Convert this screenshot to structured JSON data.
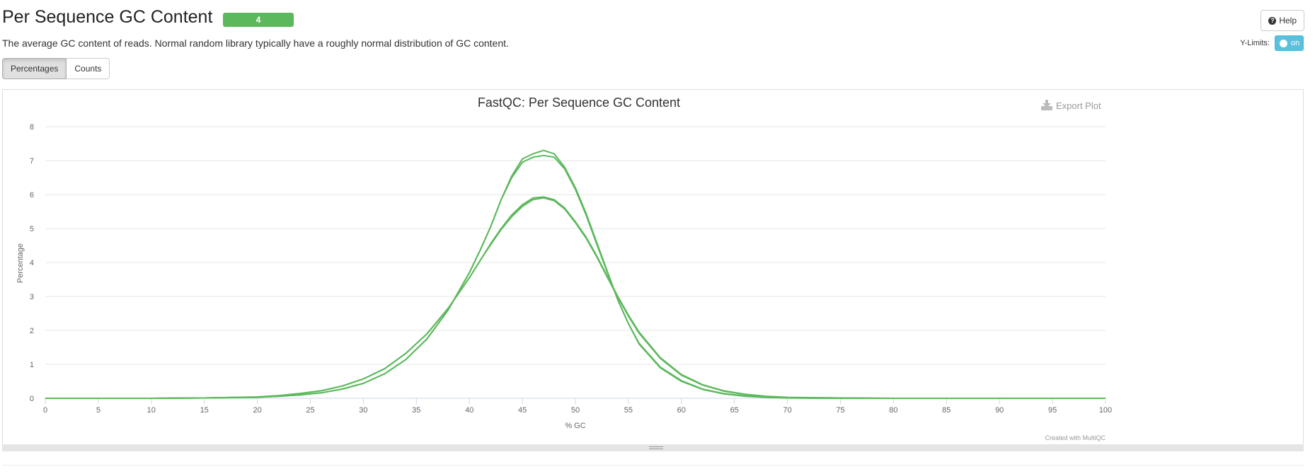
{
  "section": {
    "title": "Per Sequence GC Content",
    "badge": "4",
    "description": "The average GC content of reads. Normal random library typically have a roughly normal distribution of GC content.",
    "help_label": "Help",
    "ylimits_label": "Y-Limits:",
    "toggle_label": "on",
    "tabs": [
      {
        "label": "Percentages",
        "active": true
      },
      {
        "label": "Counts",
        "active": false
      }
    ],
    "export_label": "Export Plot",
    "credit": "Created with MultiQC"
  },
  "colors": {
    "series": "#5cb85c",
    "badge": "#5cb85c",
    "toggle": "#5bc0de"
  },
  "chart_data": {
    "type": "line",
    "title": "FastQC: Per Sequence GC Content",
    "xlabel": "% GC",
    "ylabel": "Percentage",
    "xlim": [
      0,
      100
    ],
    "ylim": [
      0,
      8
    ],
    "xticks": [
      0,
      5,
      10,
      15,
      20,
      25,
      30,
      35,
      40,
      45,
      50,
      55,
      60,
      65,
      70,
      75,
      80,
      85,
      90,
      95,
      100
    ],
    "yticks": [
      0,
      1,
      2,
      3,
      4,
      5,
      6,
      7,
      8
    ],
    "grid": true,
    "legend": false,
    "x": [
      0,
      5,
      10,
      15,
      20,
      22,
      24,
      26,
      28,
      30,
      32,
      34,
      36,
      38,
      40,
      41,
      42,
      43,
      44,
      45,
      46,
      47,
      48,
      49,
      50,
      51,
      52,
      53,
      54,
      55,
      56,
      58,
      60,
      62,
      64,
      66,
      68,
      70,
      75,
      80,
      85,
      90,
      95,
      100
    ],
    "series": [
      {
        "values": [
          0,
          0,
          0,
          0.01,
          0.03,
          0.06,
          0.1,
          0.16,
          0.27,
          0.44,
          0.72,
          1.14,
          1.75,
          2.6,
          3.7,
          4.35,
          5.05,
          5.85,
          6.55,
          7.05,
          7.2,
          7.3,
          7.2,
          6.8,
          6.2,
          5.45,
          4.6,
          3.75,
          2.9,
          2.2,
          1.6,
          0.9,
          0.5,
          0.26,
          0.13,
          0.06,
          0.03,
          0.01,
          0,
          0,
          0,
          0,
          0,
          0
        ]
      },
      {
        "values": [
          0,
          0,
          0,
          0.01,
          0.03,
          0.06,
          0.1,
          0.16,
          0.27,
          0.44,
          0.72,
          1.14,
          1.75,
          2.6,
          3.7,
          4.35,
          5.05,
          5.85,
          6.5,
          6.95,
          7.1,
          7.15,
          7.1,
          6.75,
          6.15,
          5.4,
          4.55,
          3.72,
          2.9,
          2.2,
          1.62,
          0.92,
          0.52,
          0.27,
          0.14,
          0.07,
          0.03,
          0.01,
          0,
          0,
          0,
          0,
          0,
          0
        ]
      },
      {
        "values": [
          0,
          0,
          0,
          0.01,
          0.04,
          0.08,
          0.14,
          0.22,
          0.36,
          0.57,
          0.87,
          1.32,
          1.9,
          2.65,
          3.55,
          4.05,
          4.55,
          5.0,
          5.4,
          5.7,
          5.9,
          5.93,
          5.85,
          5.6,
          5.2,
          4.75,
          4.2,
          3.6,
          3.0,
          2.45,
          1.95,
          1.2,
          0.7,
          0.4,
          0.22,
          0.12,
          0.06,
          0.03,
          0.01,
          0,
          0,
          0,
          0,
          0
        ]
      },
      {
        "values": [
          0,
          0,
          0,
          0.01,
          0.04,
          0.08,
          0.14,
          0.22,
          0.36,
          0.57,
          0.87,
          1.32,
          1.9,
          2.65,
          3.55,
          4.05,
          4.52,
          4.97,
          5.35,
          5.65,
          5.85,
          5.9,
          5.82,
          5.57,
          5.17,
          4.72,
          4.17,
          3.57,
          2.98,
          2.42,
          1.92,
          1.18,
          0.68,
          0.39,
          0.21,
          0.11,
          0.05,
          0.02,
          0.01,
          0,
          0,
          0,
          0,
          0
        ]
      }
    ]
  }
}
